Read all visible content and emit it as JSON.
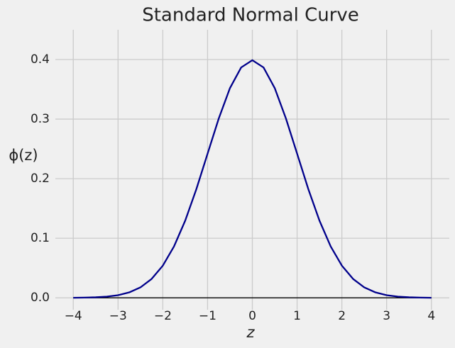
{
  "chart_data": {
    "type": "line",
    "title": "Standard Normal Curve",
    "x_label": "z",
    "y_label": "ϕ(z)",
    "x": [
      -4,
      -3.75,
      -3.5,
      -3.25,
      -3,
      -2.75,
      -2.5,
      -2.25,
      -2,
      -1.75,
      -1.5,
      -1.25,
      -1,
      -0.75,
      -0.5,
      -0.25,
      0,
      0.25,
      0.5,
      0.75,
      1,
      1.25,
      1.5,
      1.75,
      2,
      2.25,
      2.5,
      2.75,
      3,
      3.25,
      3.5,
      3.75,
      4
    ],
    "series": [
      {
        "color": "#00008b",
        "values": [
          0.0001,
          0.0004,
          0.0009,
          0.002,
          0.0044,
          0.0091,
          0.0175,
          0.0317,
          0.054,
          0.0863,
          0.1295,
          0.1826,
          0.242,
          0.3011,
          0.3521,
          0.3867,
          0.3989,
          0.3867,
          0.3521,
          0.3011,
          0.242,
          0.1826,
          0.1295,
          0.0863,
          0.054,
          0.0317,
          0.0175,
          0.0091,
          0.0044,
          0.002,
          0.0009,
          0.0004,
          0.0001
        ]
      }
    ],
    "baseline": 0,
    "xlim": [
      -4.4,
      4.4
    ],
    "ylim": [
      -0.02,
      0.45
    ],
    "xticks": [
      {
        "value": -4,
        "label": "−4"
      },
      {
        "value": -3,
        "label": "−3"
      },
      {
        "value": -2,
        "label": "−2"
      },
      {
        "value": -1,
        "label": "−1"
      },
      0,
      1,
      2,
      3,
      4
    ],
    "yticks": [
      {
        "value": 0,
        "label": "0.0"
      },
      0.1,
      0.2,
      0.3,
      0.4
    ],
    "grid": true
  }
}
